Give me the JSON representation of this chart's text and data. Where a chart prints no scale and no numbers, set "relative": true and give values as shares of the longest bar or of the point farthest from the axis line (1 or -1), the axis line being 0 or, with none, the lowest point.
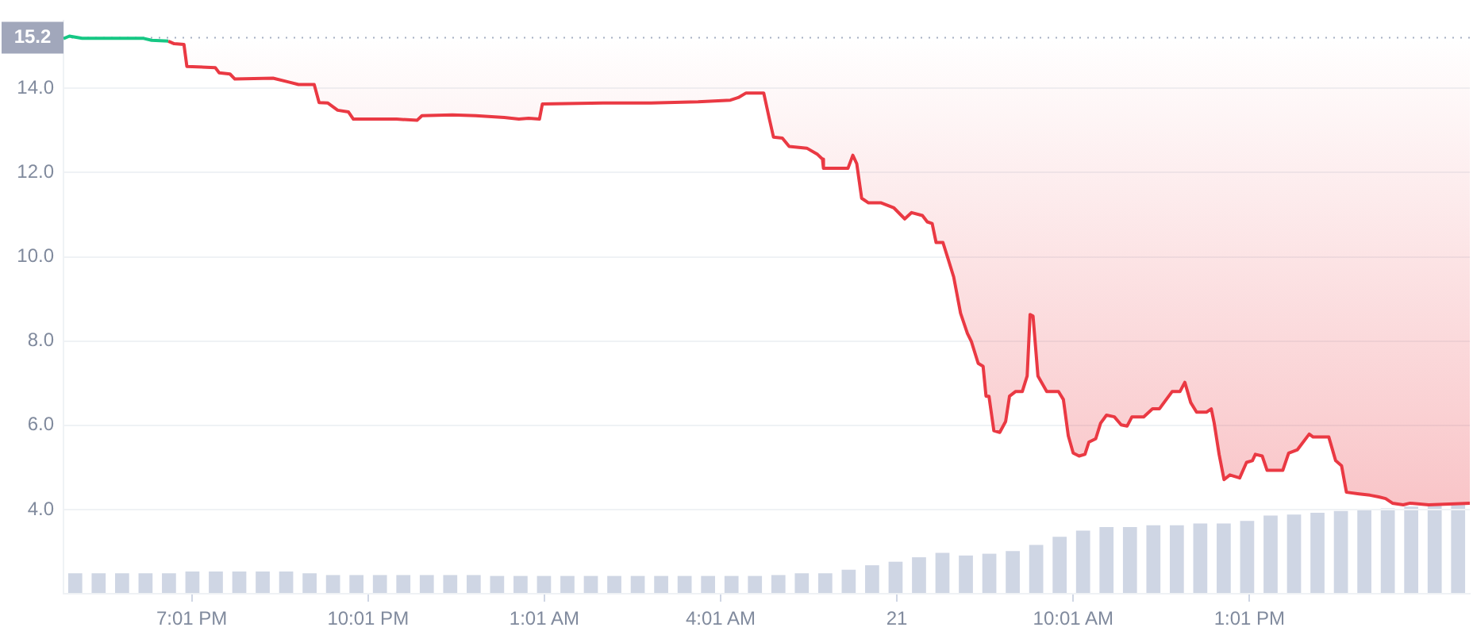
{
  "chart_data": [
    {
      "type": "line",
      "xlim": [
        "--05-20T16:50",
        "--05-21T16:46"
      ],
      "xticks": [
        {
          "value": "--05-20T19:01",
          "label": "7:01 PM"
        },
        {
          "value": "--05-20T22:01",
          "label": "10:01 PM"
        },
        {
          "value": "--05-21T01:01",
          "label": "1:01 AM"
        },
        {
          "value": "--05-21T04:01",
          "label": "4:01 AM"
        },
        {
          "value": "--05-21T07:01",
          "label": "21"
        },
        {
          "value": "--05-21T10:01",
          "label": "10:01 AM"
        },
        {
          "value": "--05-21T13:01",
          "label": "1:01 PM"
        }
      ],
      "ylim": [
        2.0,
        15.6
      ],
      "yticks": [
        {
          "value": 4,
          "label": "4.0"
        },
        {
          "value": 6,
          "label": "6.0"
        },
        {
          "value": 8,
          "label": "8.0"
        },
        {
          "value": 10,
          "label": "10.0"
        },
        {
          "value": 12,
          "label": "12.0"
        },
        {
          "value": 14,
          "label": "14.0"
        }
      ],
      "grid": "y",
      "legend": false,
      "marker": "none",
      "line_style": "solid",
      "ref_lines": [
        {
          "axis": "y",
          "value": 15.2,
          "label": "15.2",
          "color": "#a6b0c3",
          "line_style": "dotted"
        }
      ],
      "series": [
        {
          "type": "line",
          "color": "#16c784",
          "x": [
            "--05-20T16:50",
            "--05-20T16:56",
            "--05-20T17:09",
            "--05-20T18:11",
            "--05-20T18:20",
            "--05-20T18:37"
          ],
          "values": [
            15.18,
            15.24,
            15.19,
            15.19,
            15.14,
            15.12
          ]
        },
        {
          "type": "line",
          "color": "#ea3943",
          "lower": [
            15.12,
            15.06,
            15.04,
            14.52,
            14.49,
            14.37,
            14.34,
            14.22,
            14.24,
            14.15,
            14.09,
            14.09,
            13.66,
            13.65,
            13.48,
            13.44,
            13.27,
            13.27,
            13.24,
            13.35,
            13.37,
            13.35,
            13.31,
            13.27,
            13.29,
            13.27,
            13.63,
            13.65,
            13.65,
            13.68,
            13.72,
            13.78,
            13.89,
            13.89,
            13.25,
            12.84,
            12.82,
            12.62,
            12.58,
            12.43,
            12.32,
            12.1,
            12.1,
            12.41,
            12.21,
            11.39,
            11.28,
            11.28,
            11.16,
            10.9,
            11.05,
            10.98,
            10.83,
            10.79,
            10.34,
            10.34,
            9.97,
            9.52,
            8.66,
            8.18,
            7.99,
            7.47,
            7.4,
            6.69,
            6.69,
            5.87,
            5.83,
            6.09,
            6.69,
            6.8,
            6.8,
            7.17,
            8.63,
            8.59,
            7.17,
            6.8,
            6.8,
            6.61,
            5.75,
            5.34,
            5.27,
            5.31,
            5.6,
            5.68,
            6.05,
            6.24,
            6.2,
            6.01,
            5.98,
            6.2,
            6.2,
            6.39,
            6.39,
            6.8,
            6.8,
            7.02,
            6.54,
            6.31,
            6.31,
            6.39,
            6.05,
            5.31,
            4.71,
            4.82,
            4.75,
            5.12,
            5.16,
            5.31,
            5.27,
            4.93,
            4.93,
            5.34,
            5.42,
            5.79,
            5.72,
            5.72,
            5.16,
            5.04,
            4.41,
            4.37,
            4.34,
            4.3,
            4.26,
            4.15,
            4.11,
            4.15,
            4.11,
            4.15
          ],
          "upper": [
            15.2,
            15.2,
            15.2,
            15.2,
            15.2,
            15.2,
            15.2,
            15.2,
            15.2,
            15.2,
            15.2,
            15.2,
            15.2,
            15.2,
            15.2,
            15.2,
            15.2,
            15.2,
            15.2,
            15.2,
            15.2,
            15.2,
            15.2,
            15.2,
            15.2,
            15.2,
            15.2,
            15.2,
            15.2,
            15.2,
            15.2,
            15.2,
            15.2,
            15.2,
            15.2,
            15.2,
            15.2,
            15.2,
            15.2,
            15.2,
            15.2,
            15.2,
            15.2,
            15.2,
            15.2,
            15.2,
            15.2,
            15.2,
            15.2,
            15.2,
            15.2,
            15.2,
            15.2,
            15.2,
            15.2,
            15.2,
            15.2,
            15.2,
            15.2,
            15.2,
            15.2,
            15.2,
            15.2,
            15.2,
            15.2,
            15.2,
            15.2,
            15.2,
            15.2,
            15.2,
            15.2,
            15.2,
            15.2,
            15.2,
            15.2,
            15.2,
            15.2,
            15.2,
            15.2,
            15.2,
            15.2,
            15.2,
            15.2,
            15.2,
            15.2,
            15.2,
            15.2,
            15.2,
            15.2,
            15.2,
            15.2,
            15.2,
            15.2,
            15.2,
            15.2,
            15.2,
            15.2,
            15.2,
            15.2,
            15.2,
            15.2,
            15.2,
            15.2,
            15.2,
            15.2,
            15.2,
            15.2,
            15.2,
            15.2,
            15.2,
            15.2,
            15.2,
            15.2,
            15.2,
            15.2,
            15.2,
            15.2,
            15.2,
            15.2,
            15.2,
            15.2,
            15.2,
            15.2,
            15.2,
            15.2,
            15.2,
            15.2,
            15.2
          ],
          "x": [
            "--05-20T18:37",
            "--05-20T18:43",
            "--05-20T18:53",
            "--05-20T18:56",
            "--05-20T19:25",
            "--05-20T19:29",
            "--05-20T19:40",
            "--05-20T19:45",
            "--05-20T20:24",
            "--05-20T20:40",
            "--05-20T20:50",
            "--05-20T21:06",
            "--05-20T21:11",
            "--05-20T21:20",
            "--05-20T21:30",
            "--05-20T21:41",
            "--05-20T21:46",
            "--05-20T22:30",
            "--05-20T22:51",
            "--05-20T22:56",
            "--05-20T23:27",
            "--05-20T23:51",
            "--05-21T00:20",
            "--05-21T00:35",
            "--05-21T00:45",
            "--05-21T00:56",
            "--05-21T00:59",
            "--05-21T02:01",
            "--05-21T02:50",
            "--05-21T03:38",
            "--05-21T04:11",
            "--05-21T04:19",
            "--05-21T04:27",
            "--05-21T04:45",
            "--05-21T04:51",
            "--05-21T04:55",
            "--05-21T05:04",
            "--05-21T05:11",
            "--05-21T05:29",
            "--05-21T05:40",
            "--05-21T05:45",
            "--05-21T05:46",
            "--05-21T06:11",
            "--05-21T06:16",
            "--05-21T06:20",
            "--05-21T06:25",
            "--05-21T06:32",
            "--05-21T06:45",
            "--05-21T06:58",
            "--05-21T07:09",
            "--05-21T07:16",
            "--05-21T07:27",
            "--05-21T07:32",
            "--05-21T07:37",
            "--05-21T07:41",
            "--05-21T07:48",
            "--05-21T07:53",
            "--05-21T07:59",
            "--05-21T08:06",
            "--05-21T08:13",
            "--05-21T08:17",
            "--05-21T08:24",
            "--05-21T08:29",
            "--05-21T08:32",
            "--05-21T08:35",
            "--05-21T08:40",
            "--05-21T08:46",
            "--05-21T08:52",
            "--05-21T08:56",
            "--05-21T09:02",
            "--05-21T09:09",
            "--05-21T09:14",
            "--05-21T09:17",
            "--05-21T09:20",
            "--05-21T09:25",
            "--05-21T09:34",
            "--05-21T09:46",
            "--05-21T09:51",
            "--05-21T09:56",
            "--05-21T10:01",
            "--05-21T10:07",
            "--05-21T10:13",
            "--05-21T10:17",
            "--05-21T10:24",
            "--05-21T10:29",
            "--05-21T10:35",
            "--05-21T10:43",
            "--05-21T10:50",
            "--05-21T10:56",
            "--05-21T11:01",
            "--05-21T11:13",
            "--05-21T11:22",
            "--05-21T11:29",
            "--05-21T11:42",
            "--05-21T11:50",
            "--05-21T11:55",
            "--05-21T12:01",
            "--05-21T12:07",
            "--05-21T12:17",
            "--05-21T12:22",
            "--05-21T12:25",
            "--05-21T12:30",
            "--05-21T12:35",
            "--05-21T12:41",
            "--05-21T12:51",
            "--05-21T12:58",
            "--05-21T13:04",
            "--05-21T13:07",
            "--05-21T13:14",
            "--05-21T13:19",
            "--05-21T13:35",
            "--05-21T13:41",
            "--05-21T13:50",
            "--05-21T14:02",
            "--05-21T14:06",
            "--05-21T14:22",
            "--05-21T14:29",
            "--05-21T14:35",
            "--05-21T14:40",
            "--05-21T14:53",
            "--05-21T15:04",
            "--05-21T15:13",
            "--05-21T15:20",
            "--05-21T15:27",
            "--05-21T15:38",
            "--05-21T15:45",
            "--05-21T16:04",
            "--05-21T16:46"
          ],
          "values": [
            15.12,
            15.06,
            15.04,
            14.52,
            14.49,
            14.37,
            14.34,
            14.22,
            14.24,
            14.15,
            14.09,
            14.09,
            13.66,
            13.65,
            13.48,
            13.44,
            13.27,
            13.27,
            13.24,
            13.35,
            13.37,
            13.35,
            13.31,
            13.27,
            13.29,
            13.27,
            13.63,
            13.65,
            13.65,
            13.68,
            13.72,
            13.78,
            13.89,
            13.89,
            13.25,
            12.84,
            12.82,
            12.62,
            12.58,
            12.43,
            12.32,
            12.1,
            12.1,
            12.41,
            12.21,
            11.39,
            11.28,
            11.28,
            11.16,
            10.9,
            11.05,
            10.98,
            10.83,
            10.79,
            10.34,
            10.34,
            9.97,
            9.52,
            8.66,
            8.18,
            7.99,
            7.47,
            7.4,
            6.69,
            6.69,
            5.87,
            5.83,
            6.09,
            6.69,
            6.8,
            6.8,
            7.17,
            8.63,
            8.59,
            7.17,
            6.8,
            6.8,
            6.61,
            5.75,
            5.34,
            5.27,
            5.31,
            5.6,
            5.68,
            6.05,
            6.24,
            6.2,
            6.01,
            5.98,
            6.2,
            6.2,
            6.39,
            6.39,
            6.8,
            6.8,
            7.02,
            6.54,
            6.31,
            6.31,
            6.39,
            6.05,
            5.31,
            4.71,
            4.82,
            4.75,
            5.12,
            5.16,
            5.31,
            5.27,
            4.93,
            4.93,
            5.34,
            5.42,
            5.79,
            5.72,
            5.72,
            5.16,
            5.04,
            4.41,
            4.37,
            4.34,
            4.3,
            4.26,
            4.15,
            4.11,
            4.15,
            4.11,
            4.15
          ]
        }
      ]
    },
    {
      "type": "bar",
      "relative": true,
      "color": "#cfd6e4",
      "legend": false,
      "categories": [
        null,
        null,
        null,
        null,
        null,
        null,
        null,
        null,
        null,
        null,
        null,
        null,
        null,
        null,
        null,
        null,
        null,
        null,
        null,
        null,
        null,
        null,
        null,
        null,
        null,
        null,
        null,
        null,
        null,
        null,
        null,
        null,
        null,
        null,
        null,
        null,
        null,
        null,
        null,
        null,
        null,
        null,
        null,
        null,
        null,
        null,
        null,
        null,
        null,
        null,
        null,
        null,
        null,
        null,
        null,
        null,
        null,
        null,
        null,
        null
      ],
      "values": [
        0.23,
        0.23,
        0.23,
        0.23,
        0.23,
        0.25,
        0.25,
        0.25,
        0.25,
        0.25,
        0.23,
        0.21,
        0.21,
        0.21,
        0.21,
        0.21,
        0.21,
        0.21,
        0.2,
        0.2,
        0.2,
        0.2,
        0.2,
        0.2,
        0.2,
        0.2,
        0.2,
        0.2,
        0.2,
        0.2,
        0.21,
        0.23,
        0.23,
        0.27,
        0.32,
        0.36,
        0.41,
        0.46,
        0.43,
        0.45,
        0.48,
        0.55,
        0.64,
        0.71,
        0.75,
        0.75,
        0.77,
        0.77,
        0.79,
        0.79,
        0.82,
        0.88,
        0.89,
        0.91,
        0.93,
        0.95,
        0.96,
        0.98,
        1,
        1
      ]
    }
  ]
}
